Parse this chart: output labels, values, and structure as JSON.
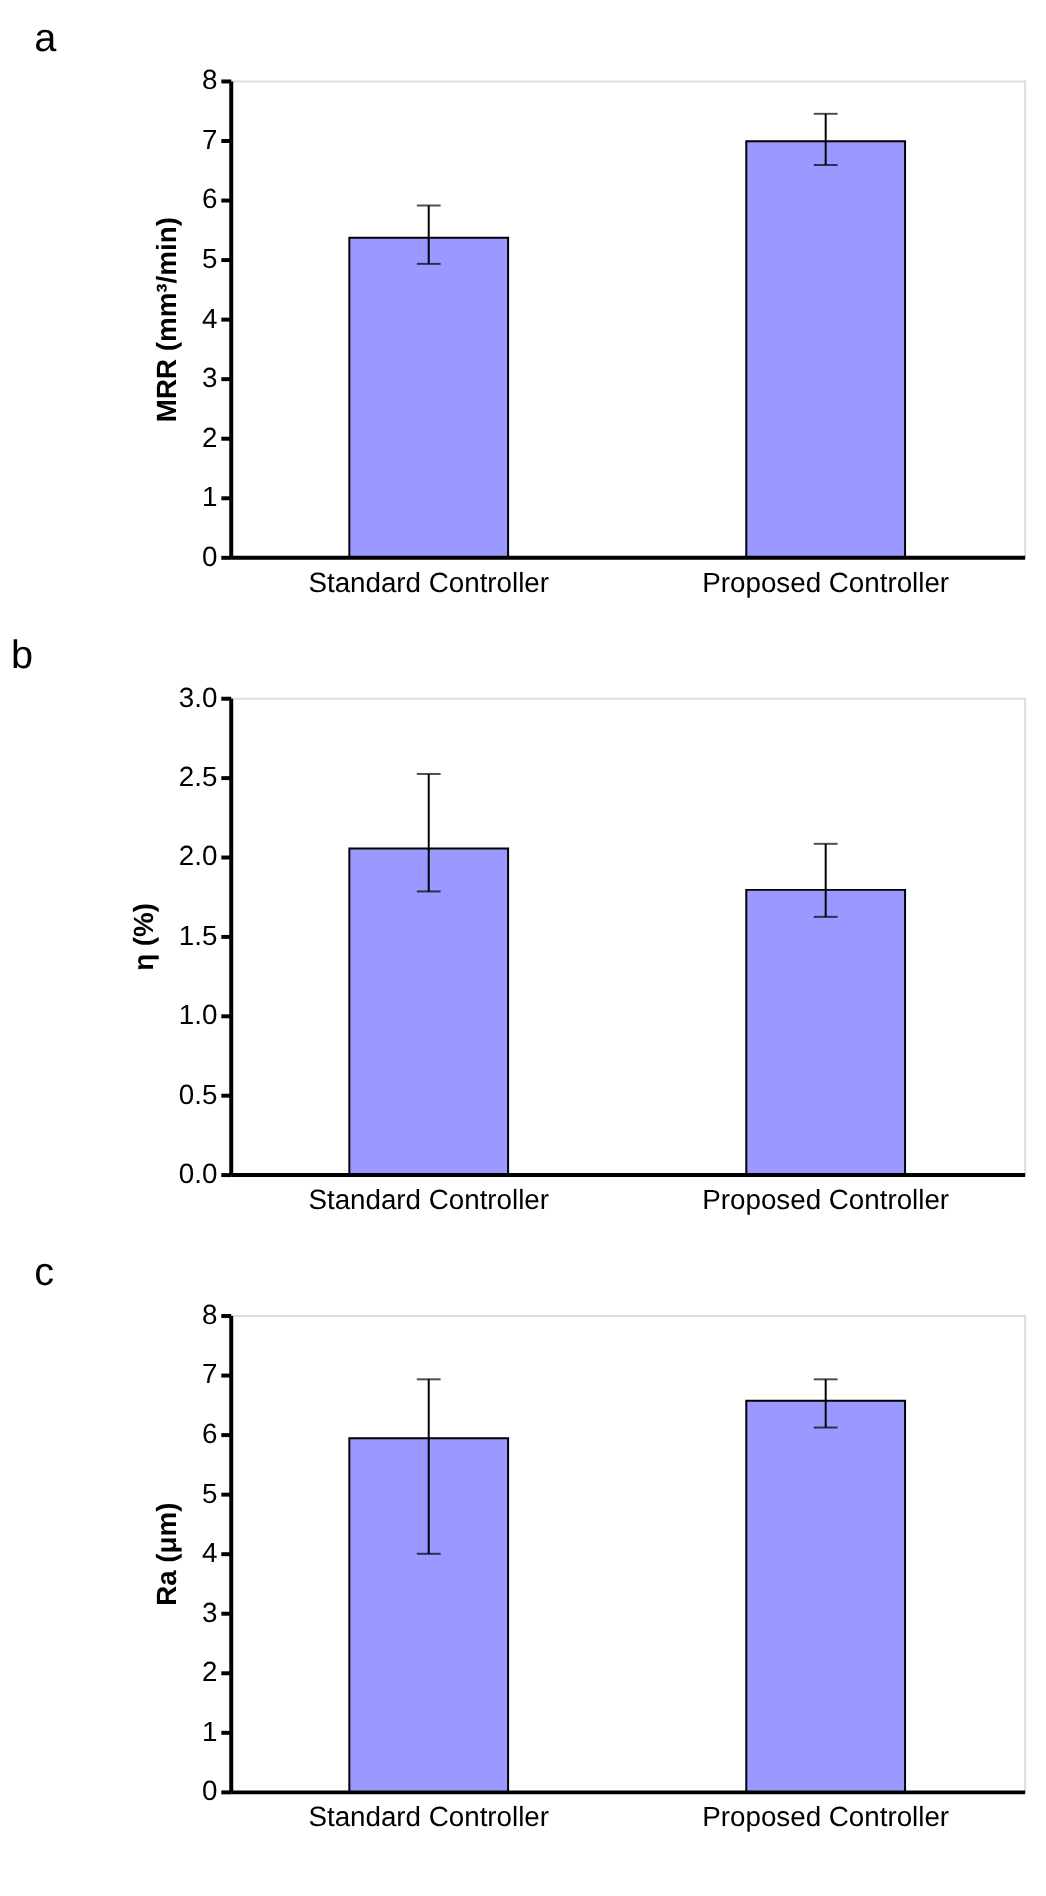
{
  "chart_data": [
    {
      "type": "bar",
      "title": "a",
      "ylabel": "MRR (mm³/min)",
      "categories": [
        "Standard Controller",
        "Proposed Controller"
      ],
      "values": [
        5.36,
        6.98
      ],
      "errors": [
        [
          4.92,
          5.9
        ],
        [
          6.58,
          7.44
        ]
      ],
      "color": "#9999ff",
      "ylim": [
        0,
        8
      ],
      "yticks": [
        0,
        1,
        2,
        3,
        4,
        5,
        6,
        7,
        8
      ],
      "grid": false
    },
    {
      "type": "bar",
      "title": "b",
      "ylabel": "η (%)",
      "categories": [
        "Standard Controller",
        "Proposed Controller"
      ],
      "values": [
        2.05,
        1.79
      ],
      "errors": [
        [
          1.78,
          2.52
        ],
        [
          1.62,
          2.08
        ]
      ],
      "color": "#9999ff",
      "ylim": [
        0,
        3
      ],
      "yticks": [
        {
          "value": 0,
          "label": "0.0"
        },
        {
          "value": 0.5,
          "label": "0.5"
        },
        {
          "value": 1,
          "label": "1.0"
        },
        {
          "value": 1.5,
          "label": "1.5"
        },
        {
          "value": 2,
          "label": "2.0"
        },
        {
          "value": 2.5,
          "label": "2.5"
        },
        {
          "value": 3,
          "label": "3.0"
        }
      ],
      "grid": false
    },
    {
      "type": "bar",
      "title": "c",
      "ylabel": "Ra (μm)",
      "categories": [
        "Standard Controller",
        "Proposed Controller"
      ],
      "values": [
        5.93,
        6.56
      ],
      "errors": [
        [
          3.99,
          6.92
        ],
        [
          6.11,
          6.92
        ]
      ],
      "color": "#9999ff",
      "ylim": [
        0,
        8
      ],
      "yticks": [
        0,
        1,
        2,
        3,
        4,
        5,
        6,
        7,
        8
      ],
      "grid": false
    }
  ]
}
